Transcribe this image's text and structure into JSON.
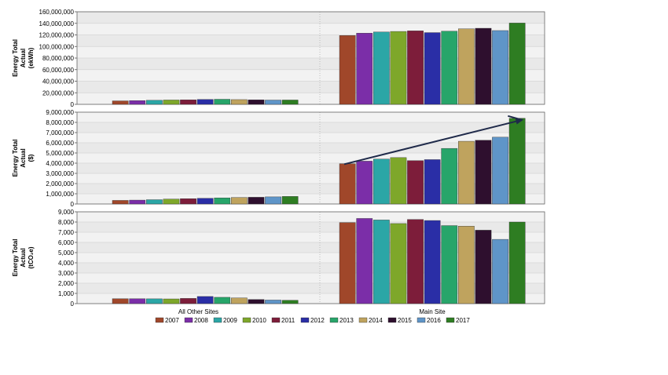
{
  "chart_data": {
    "type": "bar",
    "categories": [
      "All Other Sites",
      "Main Site"
    ],
    "legend": {
      "placement": "bottom",
      "entries": [
        {
          "name": "2007",
          "color": "#A0472A"
        },
        {
          "name": "2008",
          "color": "#7B2EA8"
        },
        {
          "name": "2009",
          "color": "#2BA6A6"
        },
        {
          "name": "2010",
          "color": "#7EA72A"
        },
        {
          "name": "2011",
          "color": "#7D1D3A"
        },
        {
          "name": "2012",
          "color": "#2A2EA6"
        },
        {
          "name": "2013",
          "color": "#27A56A"
        },
        {
          "name": "2014",
          "color": "#BFA35E"
        },
        {
          "name": "2015",
          "color": "#2E0F2E"
        },
        {
          "name": "2016",
          "color": "#5F95C8"
        },
        {
          "name": "2017",
          "color": "#2E7D22"
        }
      ]
    },
    "grid": true,
    "panels": [
      {
        "ylabel_lines": [
          "Energy Total",
          "Actual",
          "(ekWh)"
        ],
        "ylim": [
          0,
          160000000
        ],
        "yticks": [
          "0",
          "20,000,000",
          "40,000,000",
          "60,000,000",
          "80,000,000",
          "100,000,000",
          "120,000,000",
          "140,000,000",
          "160,000,000"
        ],
        "series_values": [
          [
            6000000,
            119000000
          ],
          [
            6500000,
            123000000
          ],
          [
            7000000,
            125000000
          ],
          [
            7500000,
            126000000
          ],
          [
            7800000,
            127000000
          ],
          [
            8500000,
            124000000
          ],
          [
            8800000,
            126500000
          ],
          [
            8200000,
            130500000
          ],
          [
            7800000,
            131500000
          ],
          [
            7400000,
            127500000
          ],
          [
            7500000,
            140500000
          ]
        ]
      },
      {
        "ylabel_lines": [
          "Energy Total",
          "Actual",
          "($)"
        ],
        "ylim": [
          0,
          9000000
        ],
        "yticks": [
          "0",
          "1,000,000",
          "2,000,000",
          "3,000,000",
          "4,000,000",
          "5,000,000",
          "6,000,000",
          "7,000,000",
          "8,000,000",
          "9,000,000"
        ],
        "series_values": [
          [
            350000,
            3950000
          ],
          [
            380000,
            4200000
          ],
          [
            420000,
            4400000
          ],
          [
            480000,
            4550000
          ],
          [
            520000,
            4250000
          ],
          [
            560000,
            4350000
          ],
          [
            600000,
            5450000
          ],
          [
            640000,
            6150000
          ],
          [
            660000,
            6250000
          ],
          [
            700000,
            6550000
          ],
          [
            740000,
            8400000
          ]
        ],
        "annotation": {
          "type": "arrow",
          "from": [
            3900000,
            "2007"
          ],
          "to": [
            8400000,
            "2017"
          ]
        }
      },
      {
        "ylabel_lines": [
          "Energy Total",
          "Actual",
          "(tCO₂e)"
        ],
        "ylim": [
          0,
          9000
        ],
        "yticks": [
          "0",
          "1,000",
          "2,000",
          "3,000",
          "4,000",
          "5,000",
          "6,000",
          "7,000",
          "8,000",
          "9,000"
        ],
        "series_values": [
          [
            480,
            7950
          ],
          [
            480,
            8350
          ],
          [
            470,
            8200
          ],
          [
            460,
            7850
          ],
          [
            510,
            8250
          ],
          [
            700,
            8150
          ],
          [
            620,
            7650
          ],
          [
            560,
            7600
          ],
          [
            400,
            7200
          ],
          [
            350,
            6300
          ],
          [
            330,
            8000
          ]
        ]
      }
    ]
  }
}
